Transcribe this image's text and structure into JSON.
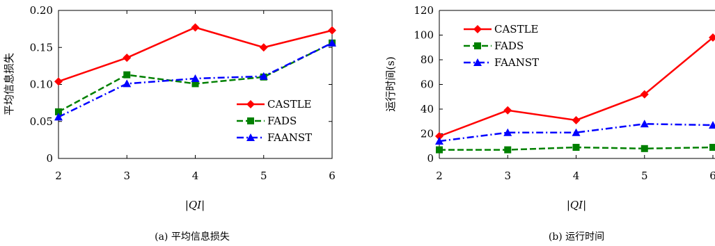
{
  "chart_data": [
    {
      "type": "line",
      "caption": "(a)  平均信息损失",
      "xlabel": "|QI|",
      "ylabel": "平均信息损失",
      "categories": [
        "2",
        "3",
        "4",
        "5",
        "6"
      ],
      "ylim": [
        0,
        0.2
      ],
      "yticks": [
        "0",
        "0.05",
        "0.10",
        "0.15",
        "0.20"
      ],
      "legend_position": "bottom-right",
      "series": [
        {
          "name": "CASTLE",
          "color": "#ff0000",
          "marker": "diamond",
          "dash": "solid",
          "values": [
            0.104,
            0.136,
            0.177,
            0.15,
            0.173
          ]
        },
        {
          "name": "FADS",
          "color": "#008000",
          "marker": "square",
          "dash": "dash",
          "values": [
            0.063,
            0.113,
            0.101,
            0.11,
            0.156
          ]
        },
        {
          "name": "FAANST",
          "color": "#0000ff",
          "marker": "triangle",
          "dash": "dashdot",
          "values": [
            0.056,
            0.101,
            0.108,
            0.111,
            0.156
          ]
        }
      ]
    },
    {
      "type": "line",
      "caption": "(b)  运行时间",
      "xlabel": "|QI|",
      "ylabel": "运行时间(s)",
      "categories": [
        "2",
        "3",
        "4",
        "5",
        "6"
      ],
      "ylim": [
        0,
        120
      ],
      "yticks": [
        "0",
        "20",
        "40",
        "60",
        "80",
        "100",
        "120"
      ],
      "legend_position": "top-left",
      "series": [
        {
          "name": "CASTLE",
          "color": "#ff0000",
          "marker": "diamond",
          "dash": "solid",
          "values": [
            18,
            39,
            31,
            52,
            98
          ]
        },
        {
          "name": "FADS",
          "color": "#008000",
          "marker": "square",
          "dash": "dash",
          "values": [
            7,
            7,
            9,
            8,
            9
          ]
        },
        {
          "name": "FAANST",
          "color": "#0000ff",
          "marker": "triangle",
          "dash": "dashdot",
          "values": [
            14,
            21,
            21,
            28,
            27
          ]
        }
      ]
    }
  ]
}
